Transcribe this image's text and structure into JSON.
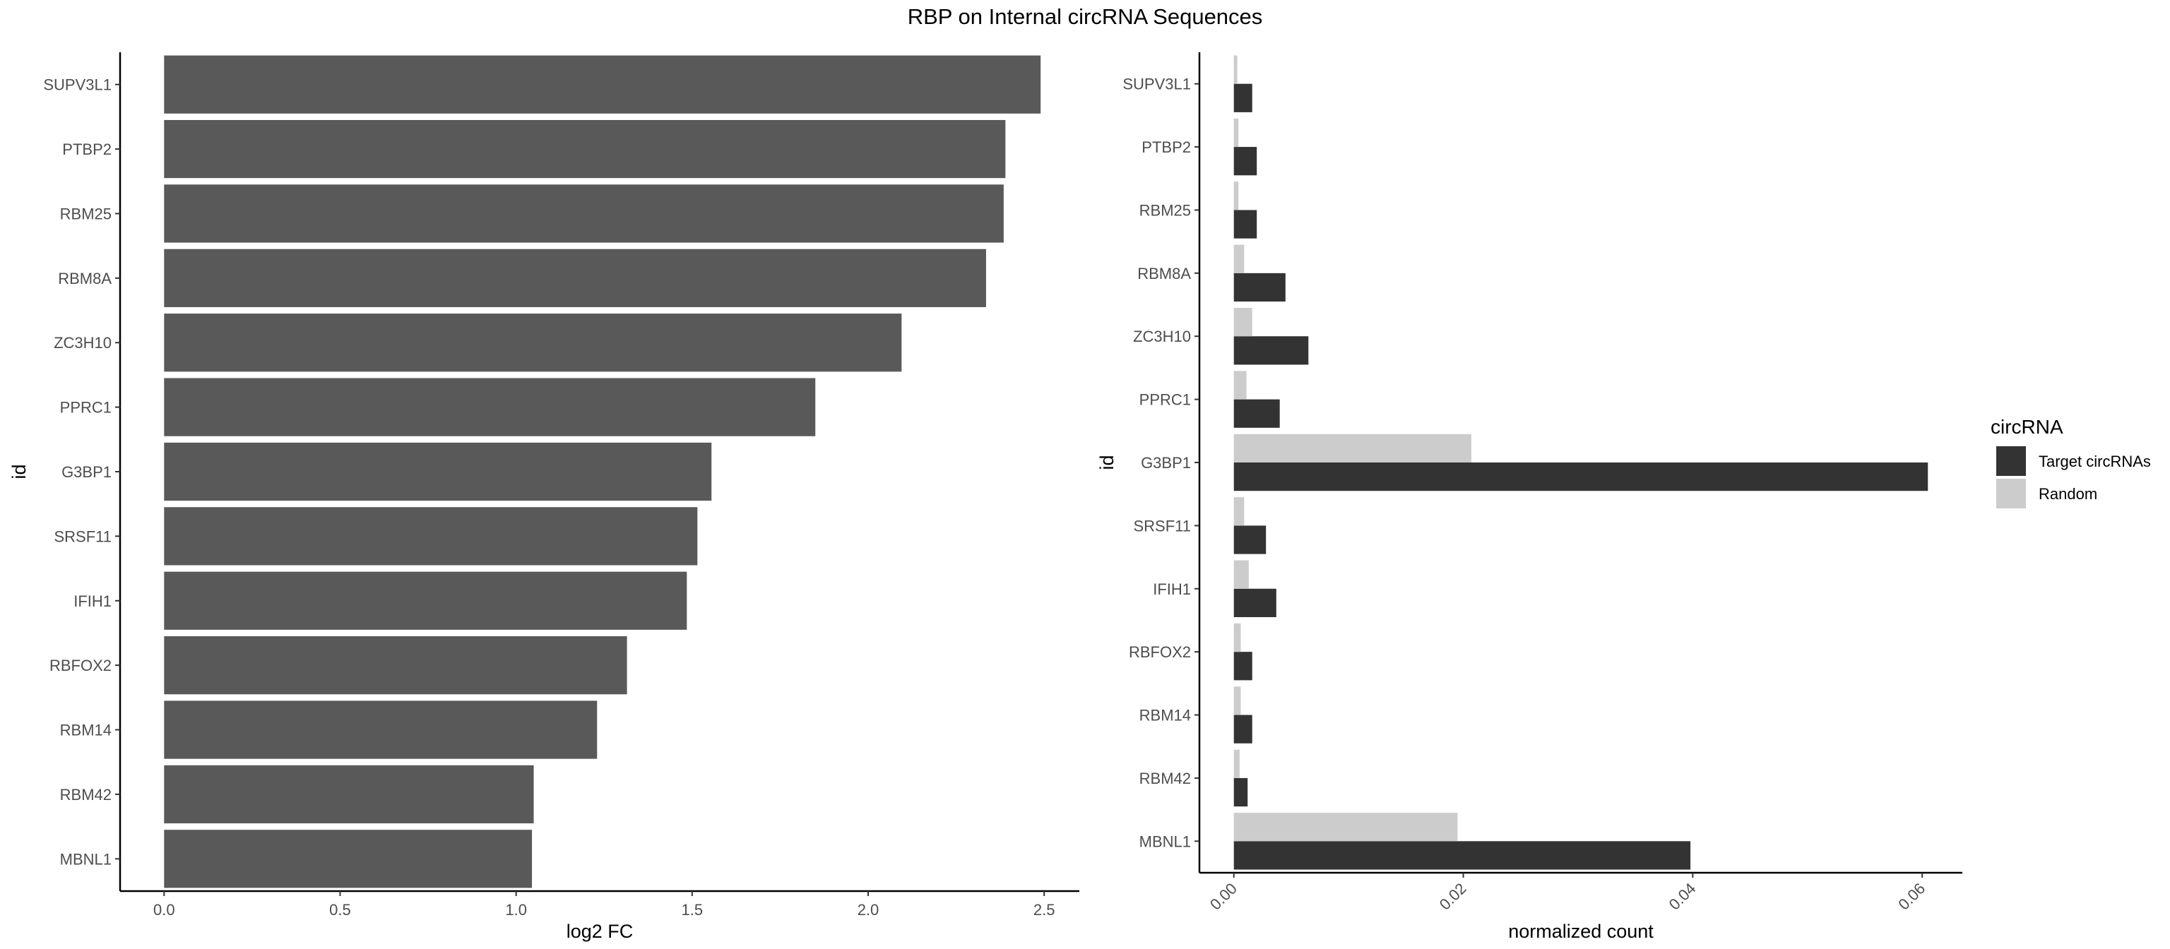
{
  "title": "RBP on Internal circRNA Sequences",
  "colors": {
    "bar_left": "#595959",
    "target": "#333333",
    "random": "#cccccc",
    "axis": "#000000"
  },
  "chart_data": [
    {
      "type": "bar",
      "orientation": "horizontal",
      "xlabel": "log2 FC",
      "ylabel": "id",
      "xlim": [
        -0.125,
        2.6
      ],
      "xticks": [
        "0.0",
        "0.5",
        "1.0",
        "1.5",
        "2.0",
        "2.5"
      ],
      "categories": [
        "SUPV3L1",
        "PTBP2",
        "RBM25",
        "RBM8A",
        "ZC3H10",
        "PPRC1",
        "G3BP1",
        "SRSF11",
        "IFIH1",
        "RBFOX2",
        "RBM14",
        "RBM42",
        "MBNL1"
      ],
      "values": [
        2.49,
        2.39,
        2.385,
        2.335,
        2.095,
        1.85,
        1.555,
        1.515,
        1.485,
        1.315,
        1.23,
        1.05,
        1.045
      ],
      "grid": false
    },
    {
      "type": "bar",
      "orientation": "horizontal",
      "xlabel": "normalized count",
      "ylabel": "id",
      "xlim": [
        -0.003,
        0.0635
      ],
      "xticks": [
        "0.00",
        "0.02",
        "0.04",
        "0.06"
      ],
      "categories": [
        "SUPV3L1",
        "PTBP2",
        "RBM25",
        "RBM8A",
        "ZC3H10",
        "PPRC1",
        "G3BP1",
        "SRSF11",
        "IFIH1",
        "RBFOX2",
        "RBM14",
        "RBM42",
        "MBNL1"
      ],
      "legend": {
        "title": "circRNA",
        "position": "right"
      },
      "series": [
        {
          "name": "Target circRNAs",
          "values": [
            0.0016,
            0.002,
            0.002,
            0.0045,
            0.0065,
            0.004,
            0.0605,
            0.0028,
            0.0037,
            0.0016,
            0.0016,
            0.0012,
            0.0398
          ]
        },
        {
          "name": "Random",
          "values": [
            0.0003,
            0.0004,
            0.0004,
            0.0009,
            0.0016,
            0.0011,
            0.0207,
            0.0009,
            0.0013,
            0.0006,
            0.0006,
            0.0005,
            0.0195
          ]
        }
      ],
      "grid": false
    }
  ]
}
